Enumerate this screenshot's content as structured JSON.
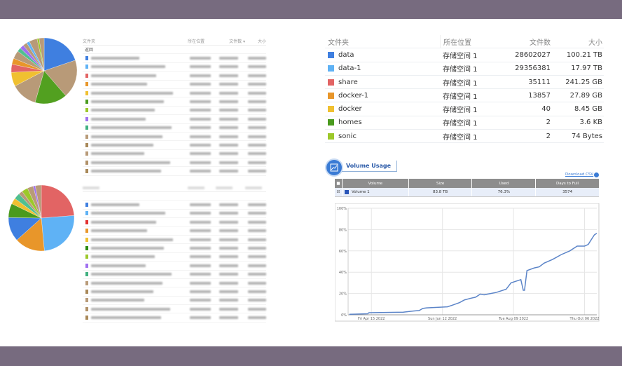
{
  "left_panels": [
    {
      "header": {
        "folder": "文件夹",
        "location": "所在位置",
        "count": "文件数 ▾",
        "size": "大小"
      },
      "back_label": "返回",
      "row_colors": [
        "#3f7fe0",
        "#5fb2f5",
        "#e26464",
        "#e8962a",
        "#f0c030",
        "#4a9a1e",
        "#9cc82a",
        "#a070f0",
        "#40b080",
        "#b89a78",
        "#a88858",
        "#b89a78",
        "#b09068",
        "#a88858"
      ]
    },
    {
      "header": {
        "folder": "",
        "location": "",
        "count": "",
        "size": ""
      },
      "back_label": "",
      "row_colors": [
        "#3f7fe0",
        "#5fb2f5",
        "#e23030",
        "#e8962a",
        "#f0c030",
        "#2a8a10",
        "#9cc82a",
        "#a070f0",
        "#40b080",
        "#b89a78",
        "#a88858",
        "#b89a78",
        "#b09068",
        "#a88858"
      ]
    }
  ],
  "folder_table": {
    "headers": [
      "文件夹",
      "所在位置",
      "文件数",
      "大小"
    ],
    "rows": [
      {
        "name": "data",
        "color": "#3f7fe0",
        "location": "存储空间 1",
        "count": "28602027",
        "size": "100.21 TB"
      },
      {
        "name": "data-1",
        "color": "#5fb2f5",
        "location": "存储空间 1",
        "count": "29356381",
        "size": "17.97 TB"
      },
      {
        "name": "share",
        "color": "#e26464",
        "location": "存储空间 1",
        "count": "35111",
        "size": "241.25 GB"
      },
      {
        "name": "docker-1",
        "color": "#e8962a",
        "location": "存储空间 1",
        "count": "13857",
        "size": "27.89 GB"
      },
      {
        "name": "docker",
        "color": "#f0c030",
        "location": "存储空间 1",
        "count": "40",
        "size": "8.45 GB"
      },
      {
        "name": "homes",
        "color": "#4a9a1e",
        "location": "存储空间 1",
        "count": "2",
        "size": "3.6 KB"
      },
      {
        "name": "sonic",
        "color": "#9cc82a",
        "location": "存储空间 1",
        "count": "2",
        "size": "74 Bytes"
      }
    ]
  },
  "volume_usage": {
    "title": "Volume Usage",
    "download_label": "Download CSV",
    "headers": [
      "Volume",
      "Size",
      "Used",
      "Days to Full"
    ],
    "row": {
      "checked": true,
      "name": "Volume 1",
      "color": "#2a55b8",
      "size": "83.8 TB",
      "used": "76.3%",
      "days_to_full": "3574"
    }
  },
  "chart_data": [
    {
      "type": "pie",
      "values": [
        20,
        19,
        16,
        13,
        7,
        4,
        3,
        4,
        2,
        2,
        2,
        1.5,
        4,
        1,
        2.5
      ],
      "colors": [
        "#3f7fe0",
        "#b89a78",
        "#52a020",
        "#b89a78",
        "#f0c030",
        "#e26464",
        "#e8962a",
        "#b89a78",
        "#50c090",
        "#a070f0",
        "#b89a78",
        "#5fb2f5",
        "#b89a78",
        "#9cc82a",
        "#b89a78"
      ]
    },
    {
      "type": "pie",
      "values": [
        24,
        25,
        15,
        12,
        7,
        3,
        3,
        2,
        3,
        3,
        1,
        3
      ],
      "colors": [
        "#e26464",
        "#5fb2f5",
        "#e8962a",
        "#3f7fe0",
        "#4a9a1e",
        "#f0c030",
        "#50c090",
        "#b89a78",
        "#9cc82a",
        "#b89a78",
        "#a070f0",
        "#b89a78"
      ]
    },
    {
      "type": "line",
      "color": "#5b84c8",
      "ylim": [
        0,
        100
      ],
      "yticks": [
        "0%",
        "20%",
        "40%",
        "60%",
        "80%",
        "100%"
      ],
      "xlim": [
        "2022-03-27",
        "2022-10-16"
      ],
      "xticks": [
        {
          "date": "2022-04-15",
          "label": "Fri Apr 15 2022"
        },
        {
          "date": "2022-06-12",
          "label": "Sun Jun 12 2022"
        },
        {
          "date": "2022-08-09",
          "label": "Tue Aug 09 2022"
        },
        {
          "date": "2022-10-06",
          "label": "Thu Oct 06 2022"
        }
      ],
      "grid": true,
      "points": [
        [
          "2022-03-28",
          0.5
        ],
        [
          "2022-04-12",
          1
        ],
        [
          "2022-04-13",
          2
        ],
        [
          "2022-05-11",
          2.5
        ],
        [
          "2022-05-19",
          3.5
        ],
        [
          "2022-05-24",
          4
        ],
        [
          "2022-05-27",
          6
        ],
        [
          "2022-05-30",
          6.5
        ],
        [
          "2022-06-16",
          7.5
        ],
        [
          "2022-06-20",
          9
        ],
        [
          "2022-06-26",
          11.5
        ],
        [
          "2022-06-30",
          14
        ],
        [
          "2022-07-05",
          15.5
        ],
        [
          "2022-07-09",
          16.5
        ],
        [
          "2022-07-13",
          19.5
        ],
        [
          "2022-07-16",
          18.8
        ],
        [
          "2022-07-26",
          21
        ],
        [
          "2022-08-03",
          24
        ],
        [
          "2022-08-07",
          30
        ],
        [
          "2022-08-15",
          33
        ],
        [
          "2022-08-17",
          23
        ],
        [
          "2022-08-18",
          23
        ],
        [
          "2022-08-20",
          41.5
        ],
        [
          "2022-08-26",
          44
        ],
        [
          "2022-08-30",
          45
        ],
        [
          "2022-09-03",
          48.5
        ],
        [
          "2022-09-10",
          52
        ],
        [
          "2022-09-17",
          56.5
        ],
        [
          "2022-09-24",
          60
        ],
        [
          "2022-09-30",
          64.5
        ],
        [
          "2022-10-06",
          64.5
        ],
        [
          "2022-10-09",
          66
        ],
        [
          "2022-10-14",
          75
        ],
        [
          "2022-10-16",
          76.5
        ]
      ]
    }
  ]
}
